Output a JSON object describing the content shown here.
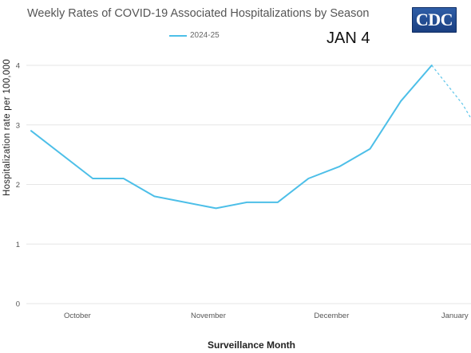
{
  "chart_data": {
    "type": "line",
    "title": "Weekly Rates of COVID-19 Associated Hospitalizations by Season",
    "ylabel": "Hospitalization rate per 100,000",
    "xlabel": "Surveillance Month",
    "ylim": [
      0,
      4
    ],
    "yticks": [
      "0",
      "1",
      "2",
      "3",
      "4"
    ],
    "xticks": [
      {
        "label": "October",
        "week": 1.5
      },
      {
        "label": "November",
        "week": 5.75
      },
      {
        "label": "December",
        "week": 9.75
      },
      {
        "label": "January",
        "week": 13.75
      }
    ],
    "grid": true,
    "legend_position": "top-center",
    "series": [
      {
        "name": "2024-25",
        "color": "#4dbfe8",
        "x": [
          0,
          2,
          3,
          4,
          5,
          6,
          7,
          8,
          9,
          10,
          11,
          12,
          13
        ],
        "values": [
          2.9,
          2.1,
          2.1,
          1.8,
          1.7,
          1.6,
          1.7,
          1.7,
          2.1,
          2.3,
          2.6,
          3.4,
          4.0
        ],
        "provisional_x": [
          13,
          14,
          14.4
        ],
        "provisional_values": [
          4.0,
          3.35,
          3.0
        ]
      }
    ]
  },
  "annotation": "JAN 4",
  "logo_text": "CDC"
}
